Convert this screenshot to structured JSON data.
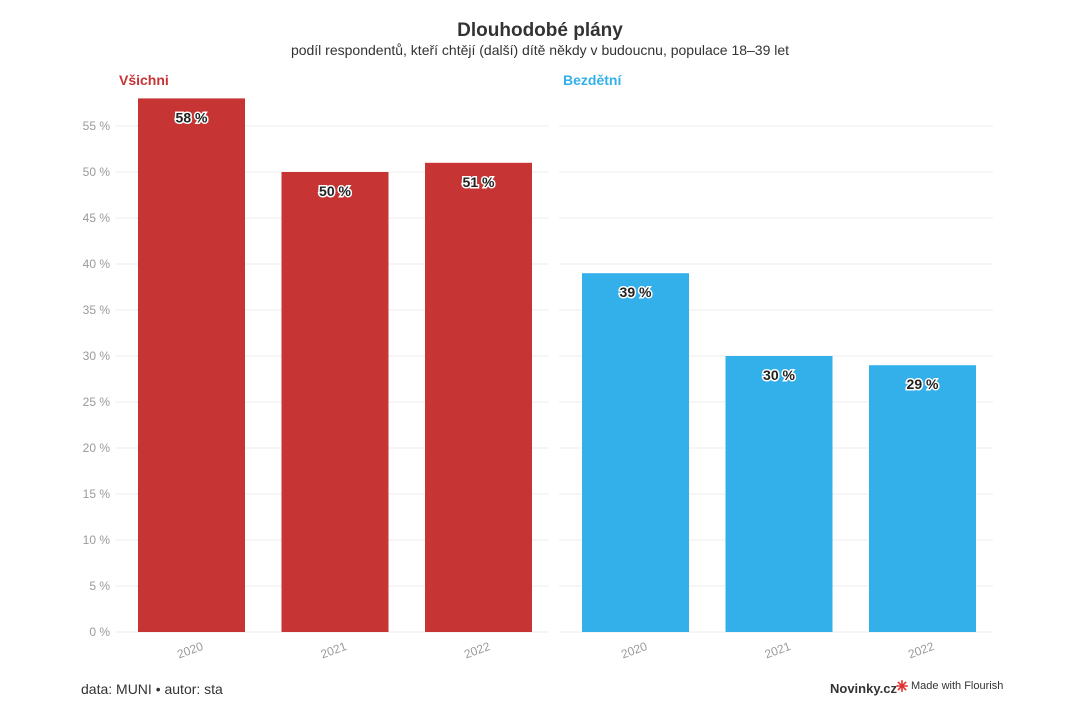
{
  "colors": {
    "vsichni": "#c63434",
    "bezdetni": "#33b0e9",
    "grid": "#ececec",
    "tick": "#9a9a9a"
  },
  "chart_data": {
    "type": "bar",
    "title": "Dlouhodobé plány",
    "subtitle": "podíl respondentů, kteří chtějí (další) dítě někdy v budoucnu, populace 18–39 let",
    "categories": [
      "2020",
      "2021",
      "2022"
    ],
    "ylim": [
      0,
      58
    ],
    "yticks": [
      0,
      5,
      10,
      15,
      20,
      25,
      30,
      35,
      40,
      45,
      50,
      55
    ],
    "ytick_labels": [
      "0 %",
      "5 %",
      "10 %",
      "15 %",
      "20 %",
      "25 %",
      "30 %",
      "35 %",
      "40 %",
      "45 %",
      "50 %",
      "55 %"
    ],
    "grid": true,
    "series": [
      {
        "name": "Všichni",
        "values": [
          58,
          50,
          51
        ],
        "labels": [
          "58 %",
          "50 %",
          "51 %"
        ],
        "color": "#c63434"
      },
      {
        "name": "Bezdětní",
        "values": [
          39,
          30,
          29
        ],
        "labels": [
          "39 %",
          "30 %",
          "29 %"
        ],
        "color": "#33b0e9"
      }
    ]
  },
  "footer": {
    "source": "data: MUNI • autor: sta",
    "brand": "Novinky.cz",
    "flourish": "Made with Flourish",
    "flourish_icon": "flourish-starburst-icon"
  }
}
